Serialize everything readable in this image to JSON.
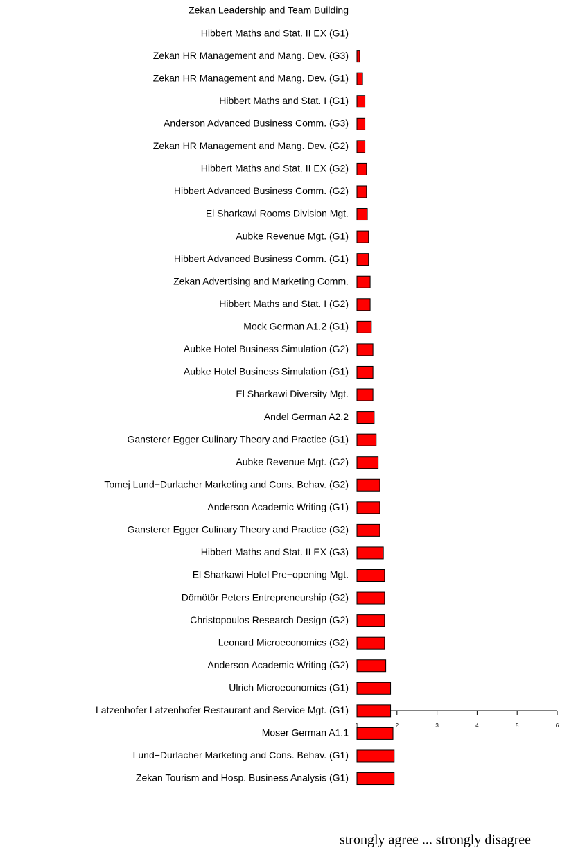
{
  "chart_data": {
    "type": "barh",
    "categories": [
      "Zekan Leadership and Team Building",
      "Hibbert Maths and Stat. II EX (G1)",
      "Zekan HR Management and Mang. Dev. (G3)",
      "Zekan HR Management and Mang. Dev. (G1)",
      "Hibbert Maths and Stat. I (G1)",
      "Anderson Advanced Business Comm. (G3)",
      "Zekan HR Management and Mang. Dev. (G2)",
      "Hibbert Maths and Stat. II EX (G2)",
      "Hibbert Advanced Business Comm. (G2)",
      "El Sharkawi Rooms Division Mgt.",
      "Aubke Revenue Mgt. (G1)",
      "Hibbert Advanced Business Comm. (G1)",
      "Zekan Advertising and Marketing Comm.",
      "Hibbert Maths and Stat. I (G2)",
      "Mock German A1.2 (G1)",
      "Aubke Hotel Business Simulation (G2)",
      "Aubke Hotel Business Simulation (G1)",
      "El Sharkawi Diversity Mgt.",
      "Andel German A2.2",
      "Gansterer Egger Culinary Theory and Practice (G1)",
      "Aubke Revenue Mgt. (G2)",
      "Tomej Lund−Durlacher Marketing and Cons. Behav. (G2)",
      "Anderson Academic Writing (G1)",
      "Gansterer Egger Culinary Theory and Practice (G2)",
      "Hibbert Maths and Stat. II EX (G3)",
      "El Sharkawi Hotel Pre−opening Mgt.",
      "Dömötör Peters Entrepreneurship (G2)",
      "Christopoulos Research Design (G2)",
      "Leonard Microeconomics (G2)",
      "Anderson Academic Writing (G2)",
      "Ulrich Microeconomics (G1)",
      "Latzenhofer Latzenhofer Restaurant and Service Mgt. (G1)",
      "Moser German A1.1",
      "Lund−Durlacher Marketing and Cons. Behav. (G1)",
      "Zekan Tourism and Hosp. Business Analysis (G1)"
    ],
    "values": [
      1.0,
      1.0,
      1.07,
      1.14,
      1.2,
      1.2,
      1.2,
      1.24,
      1.24,
      1.26,
      1.29,
      1.29,
      1.33,
      1.33,
      1.36,
      1.4,
      1.4,
      1.4,
      1.43,
      1.48,
      1.53,
      1.57,
      1.57,
      1.57,
      1.66,
      1.69,
      1.69,
      1.69,
      1.69,
      1.72,
      1.84,
      1.84,
      1.9,
      1.93,
      1.93
    ],
    "color": "#ff0000",
    "xlim": [
      1,
      6
    ],
    "xticks": [
      1,
      2,
      3,
      4,
      5,
      6
    ],
    "xlabel": "strongly agree ... strongly disagree"
  }
}
